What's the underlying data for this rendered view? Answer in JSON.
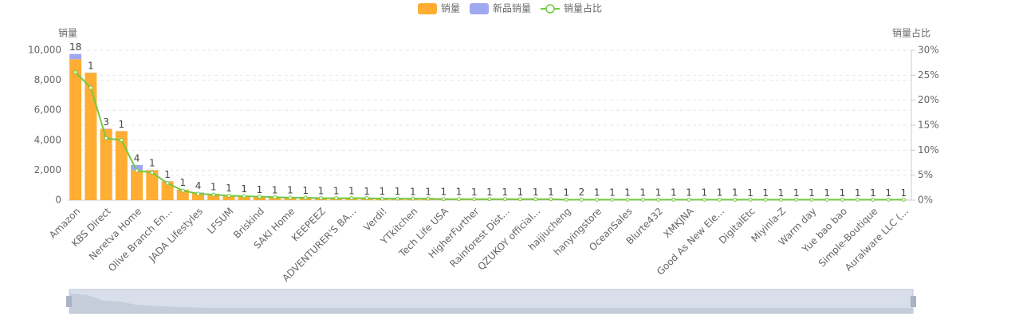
{
  "chart_data": {
    "type": "bar",
    "y_label": "销量",
    "y2_label": "销量占比",
    "categories": [
      "Amazon",
      null,
      "KBS Direct",
      null,
      "Neretva Home",
      null,
      "Olive Branch En...",
      null,
      "JADA Lifestyles",
      null,
      "LFSUM",
      null,
      "Briskind",
      null,
      "SAKI Home",
      null,
      "KEEPEEZ",
      null,
      "ADVENTURER'S BA...",
      null,
      "Verdi!",
      null,
      "YTkitchen",
      null,
      "Tech Life USA",
      null,
      "HigherFurther",
      null,
      "Rainforest Dist...",
      null,
      "QZUKOY official...",
      null,
      "haijiucheng",
      null,
      "hanyingstore",
      null,
      "OceanSales",
      null,
      "Blurte432",
      null,
      "XMKJNA",
      null,
      "Good As New Ele...",
      null,
      "DigitalEtc",
      null,
      "Miyinla-Z",
      null,
      "Warm day",
      null,
      "Yue bao bao",
      null,
      "Simple-Boutique",
      null,
      "Auralware LLC (..."
    ],
    "series": [
      {
        "name": "销量",
        "color": "#ffad33",
        "values": [
          9400,
          8500,
          4750,
          4600,
          2000,
          2000,
          1250,
          700,
          480,
          420,
          330,
          280,
          240,
          210,
          190,
          170,
          160,
          150,
          140,
          130,
          120,
          110,
          100,
          95,
          90,
          85,
          80,
          75,
          70,
          66,
          62,
          58,
          55,
          52,
          49,
          46,
          44,
          42,
          40,
          38,
          36,
          34,
          32,
          30,
          29,
          28,
          27,
          26,
          25,
          24,
          23,
          22,
          21,
          20,
          19
        ]
      },
      {
        "name": "新品销量",
        "color": "#9fa8f0",
        "values": [
          350,
          10,
          20,
          10,
          350,
          10,
          10,
          10,
          30,
          10,
          10,
          10,
          10,
          10,
          10,
          10,
          10,
          10,
          10,
          10,
          10,
          10,
          10,
          10,
          10,
          10,
          10,
          10,
          10,
          10,
          10,
          10,
          10,
          15,
          10,
          10,
          10,
          10,
          10,
          10,
          10,
          10,
          10,
          10,
          10,
          10,
          10,
          10,
          10,
          10,
          10,
          10,
          10,
          10,
          10
        ]
      },
      {
        "name": "销量占比",
        "color": "#73c940",
        "type": "line",
        "axis": "y2",
        "values": [
          25.6,
          22.5,
          12.4,
          12.0,
          5.9,
          5.5,
          3.4,
          1.9,
          1.3,
          1.1,
          0.9,
          0.8,
          0.7,
          0.6,
          0.5,
          0.5,
          0.4,
          0.4,
          0.4,
          0.4,
          0.3,
          0.3,
          0.3,
          0.3,
          0.2,
          0.2,
          0.2,
          0.2,
          0.2,
          0.2,
          0.2,
          0.2,
          0.1,
          0.1,
          0.1,
          0.1,
          0.1,
          0.1,
          0.1,
          0.1,
          0.1,
          0.1,
          0.1,
          0.1,
          0.1,
          0.1,
          0.1,
          0.1,
          0.1,
          0.1,
          0.1,
          0.1,
          0.1,
          0.1,
          0.1
        ]
      }
    ],
    "bar_labels": [
      18,
      1,
      3,
      1,
      4,
      1,
      1,
      1,
      4,
      1,
      1,
      1,
      1,
      1,
      1,
      1,
      1,
      1,
      1,
      1,
      1,
      1,
      1,
      1,
      1,
      1,
      1,
      1,
      1,
      1,
      1,
      1,
      1,
      2,
      1,
      1,
      1,
      1,
      1,
      1,
      1,
      1,
      1,
      1,
      1,
      1,
      1,
      1,
      1,
      1,
      1,
      1,
      1,
      1,
      1
    ],
    "ylim": [
      0,
      10000
    ],
    "yticks": [
      0,
      {
        "value": 2000,
        "label": "2,000"
      },
      {
        "value": 4000,
        "label": "4,000"
      },
      {
        "value": 6000,
        "label": "6,000"
      },
      {
        "value": 8000,
        "label": "8,000"
      },
      {
        "value": 10000,
        "label": "10,000"
      }
    ],
    "y2lim": [
      0,
      30
    ],
    "y2ticks": [
      {
        "value": 0,
        "label": "0%"
      },
      {
        "value": 5,
        "label": "5%"
      },
      {
        "value": 10,
        "label": "10%"
      },
      {
        "value": 15,
        "label": "15%"
      },
      {
        "value": 20,
        "label": "20%"
      },
      {
        "value": 25,
        "label": "25%"
      },
      {
        "value": 30,
        "label": "30%"
      }
    ],
    "grid": true,
    "legend": "top"
  }
}
